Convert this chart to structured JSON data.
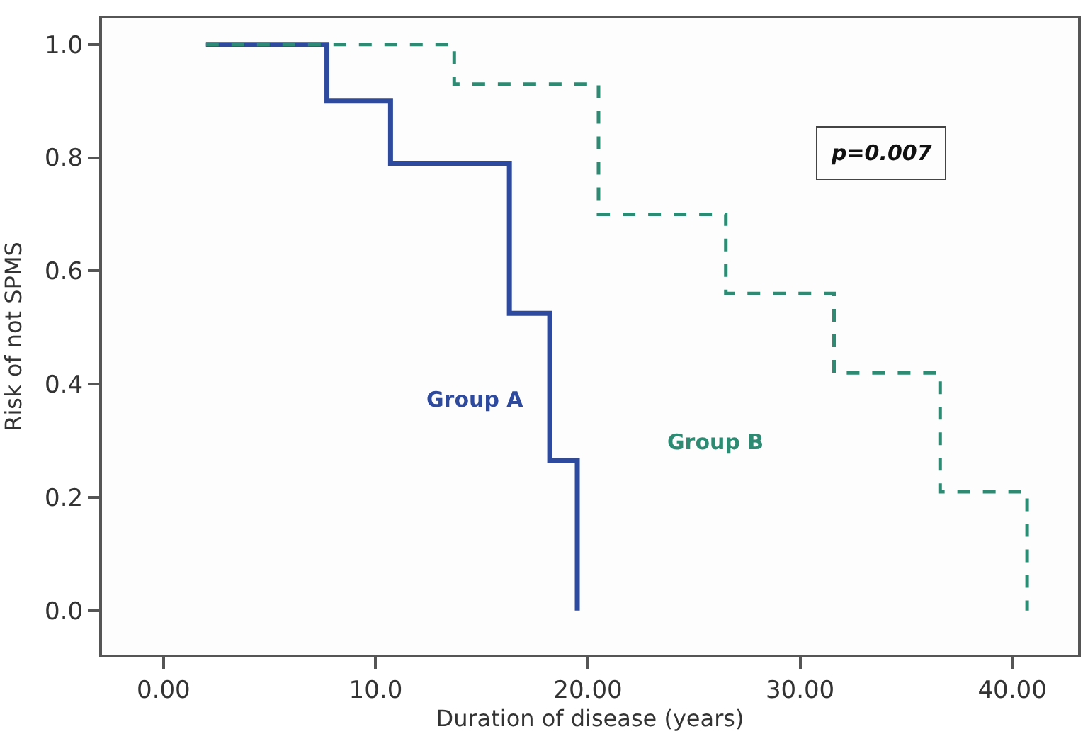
{
  "chart_data": {
    "type": "step",
    "xlabel": "Duration of disease (years)",
    "ylabel": "Risk of not SPMS",
    "xlim": [
      -2.9,
      43.1
    ],
    "xticks": [
      {
        "value": 0,
        "label": "0.00"
      },
      {
        "value": 10,
        "label": "10.0"
      },
      {
        "value": 20,
        "label": "20.00"
      },
      {
        "value": 30,
        "label": "30.00"
      },
      {
        "value": 40,
        "label": "40.00"
      }
    ],
    "ylim": [
      -0.078,
      1.046
    ],
    "yticks": [
      {
        "value": 0,
        "label": "0.0"
      },
      {
        "value": 0.2,
        "label": "0.2"
      },
      {
        "value": 0.4,
        "label": "0.4"
      },
      {
        "value": 0.6,
        "label": "0.6"
      },
      {
        "value": 0.8,
        "label": "0.8"
      },
      {
        "value": 1,
        "label": "1.0"
      }
    ],
    "grid": false,
    "legend": false,
    "marker": "none",
    "series": [
      {
        "name": "Group A",
        "color": "#2e4a9e",
        "line_style": "solid",
        "x": [
          2.0,
          7.7,
          10.7,
          16.3,
          18.2,
          19.5,
          19.5
        ],
        "values": [
          1.0,
          0.9,
          0.79,
          0.525,
          0.265,
          0.0,
          0.0
        ]
      },
      {
        "name": "Group B",
        "color": "#2e8b73",
        "line_style": "dashed",
        "x": [
          2.0,
          13.7,
          20.5,
          26.5,
          31.6,
          36.6,
          40.7,
          40.7
        ],
        "values": [
          1.0,
          0.93,
          0.7,
          0.56,
          0.42,
          0.21,
          0.0,
          0.0
        ]
      }
    ],
    "annotations": [
      "p=0.007"
    ]
  }
}
